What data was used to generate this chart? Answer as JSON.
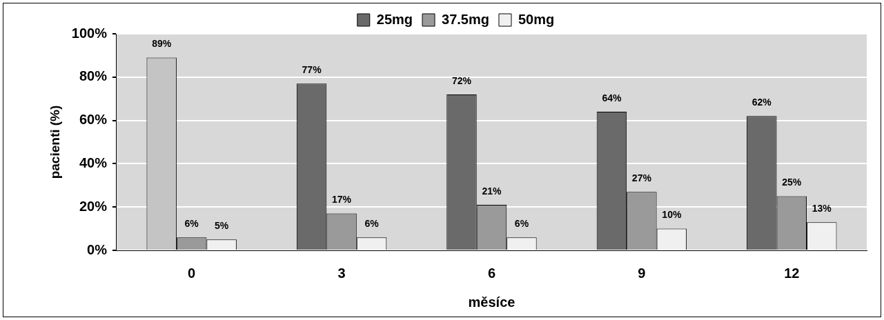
{
  "chart_data": {
    "type": "bar",
    "xlabel": "měsíce",
    "ylabel": "pacienti (%)",
    "categories": [
      "0",
      "3",
      "6",
      "9",
      "12"
    ],
    "series": [
      {
        "name": "25mg",
        "color": "#6a6a6a",
        "colors": [
          "#c4c4c4",
          "#6a6a6a",
          "#6a6a6a",
          "#6a6a6a",
          "#6a6a6a"
        ],
        "values": [
          89,
          77,
          72,
          64,
          62
        ],
        "value_labels": [
          "89%",
          "77%",
          "72%",
          "64%",
          "62%"
        ]
      },
      {
        "name": "37.5mg",
        "color": "#9a9a9a",
        "values": [
          6,
          17,
          21,
          27,
          25
        ],
        "value_labels": [
          "6%",
          "17%",
          "21%",
          "27%",
          "25%"
        ]
      },
      {
        "name": "50mg",
        "color": "#f0f0f0",
        "values": [
          5,
          6,
          6,
          10,
          13
        ],
        "value_labels": [
          "5%",
          "6%",
          "6%",
          "10%",
          "13%"
        ]
      }
    ],
    "ylim": [
      0,
      100
    ],
    "yticks": [
      {
        "value": 0,
        "label": "0%"
      },
      {
        "value": 20,
        "label": "20%"
      },
      {
        "value": 40,
        "label": "40%"
      },
      {
        "value": 60,
        "label": "60%"
      },
      {
        "value": 80,
        "label": "80%"
      },
      {
        "value": 100,
        "label": "100%"
      }
    ],
    "grid": "y",
    "legend": "top"
  }
}
